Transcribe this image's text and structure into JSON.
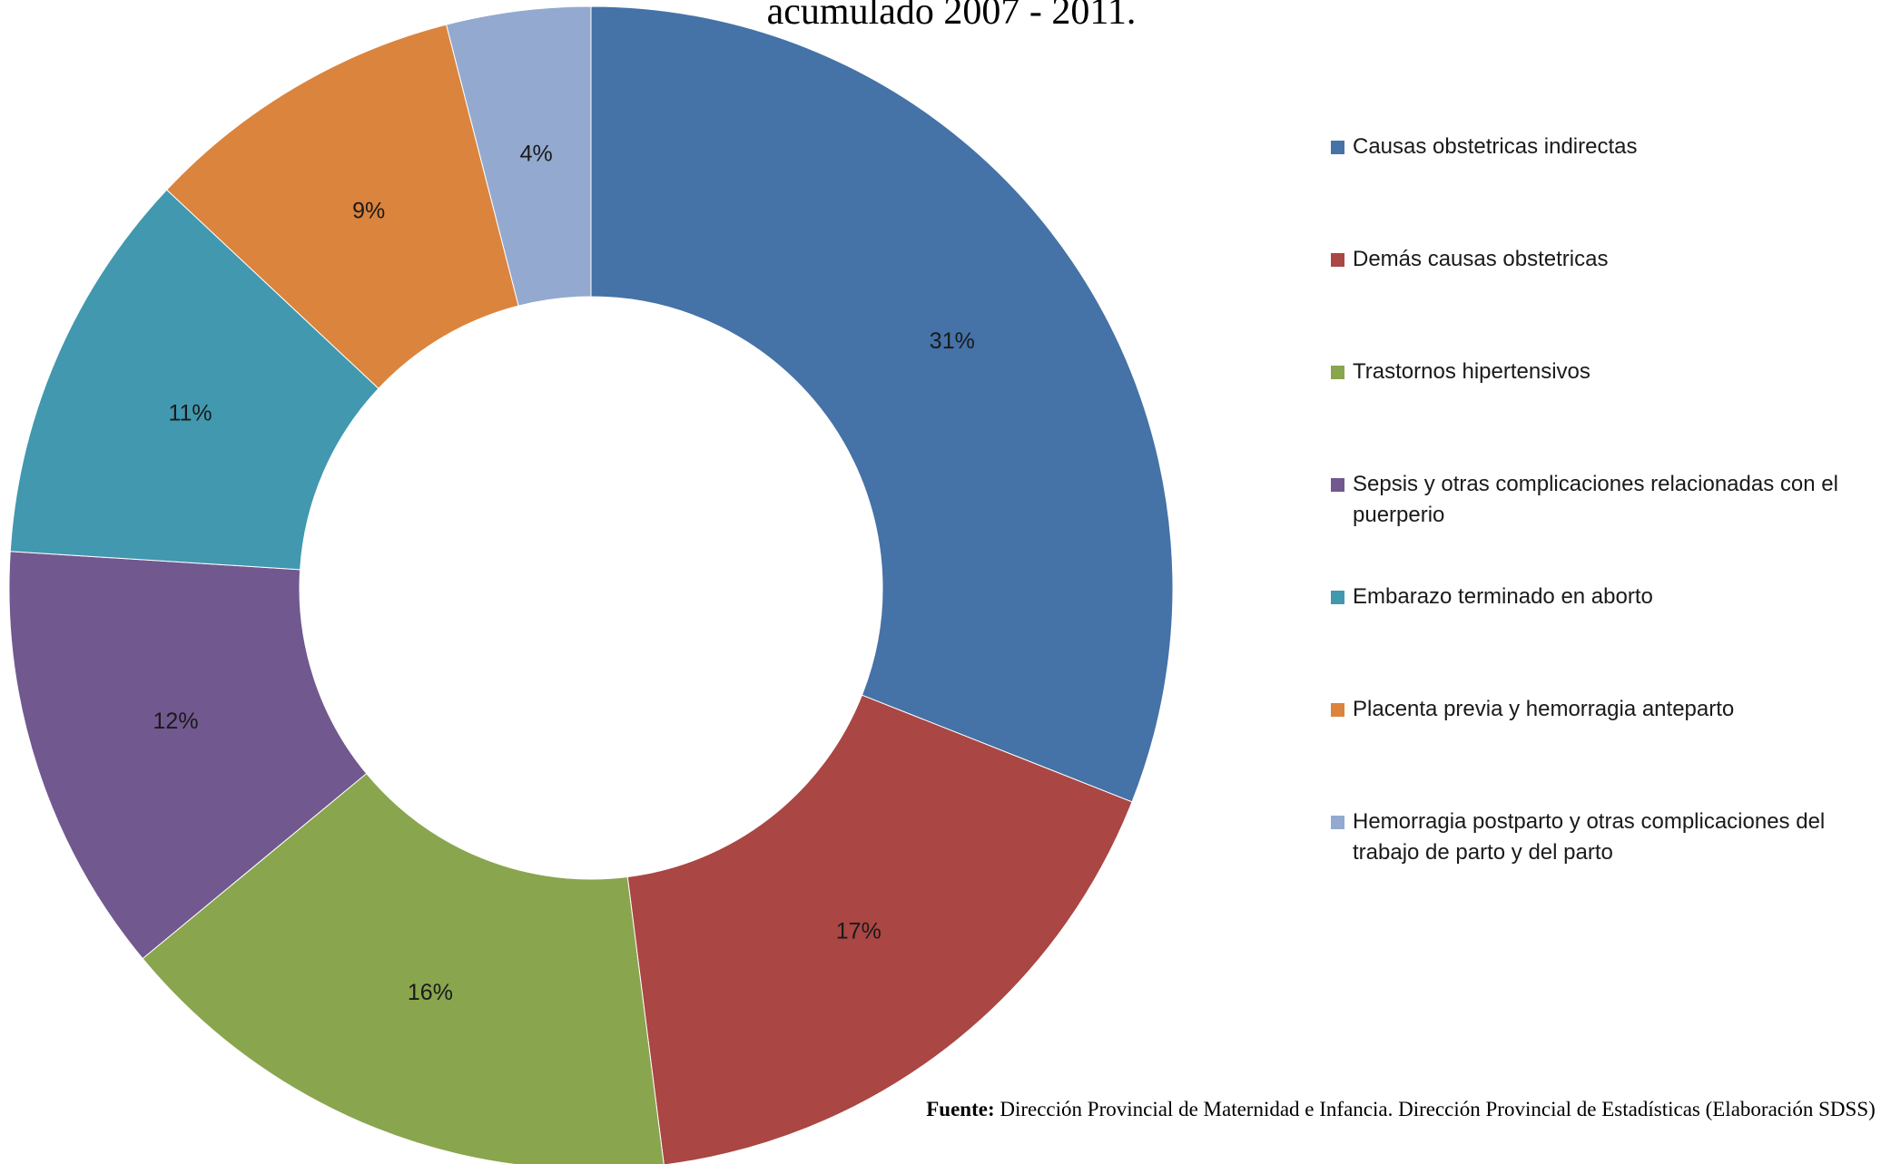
{
  "chart_data": {
    "type": "donut",
    "title": "acumulado 2007 - 2011.",
    "categories": [
      "Causas obstetricas indirectas",
      "Demás causas obstetricas",
      "Trastornos hipertensivos",
      "Sepsis y otras complicaciones relacionadas con el puerperio",
      "Embarazo terminado en aborto",
      "Placenta previa y hemorragia anteparto",
      "Hemorragia postparto y otras complicaciones del trabajo de parto y del parto"
    ],
    "values": [
      31,
      17,
      16,
      12,
      11,
      9,
      4
    ],
    "value_labels": [
      "31%",
      "17%",
      "16%",
      "12%",
      "11%",
      "9%",
      "4%"
    ],
    "colors": [
      "#4572a7",
      "#aa4643",
      "#89a54e",
      "#71588f",
      "#4198af",
      "#db843d",
      "#93a9cf"
    ],
    "legend": "right",
    "source_label": "Fuente:",
    "source": "Dirección Provincial de Maternidad e Infancia. Dirección Provincial de Estadísticas (Elaboración SDSS)"
  }
}
